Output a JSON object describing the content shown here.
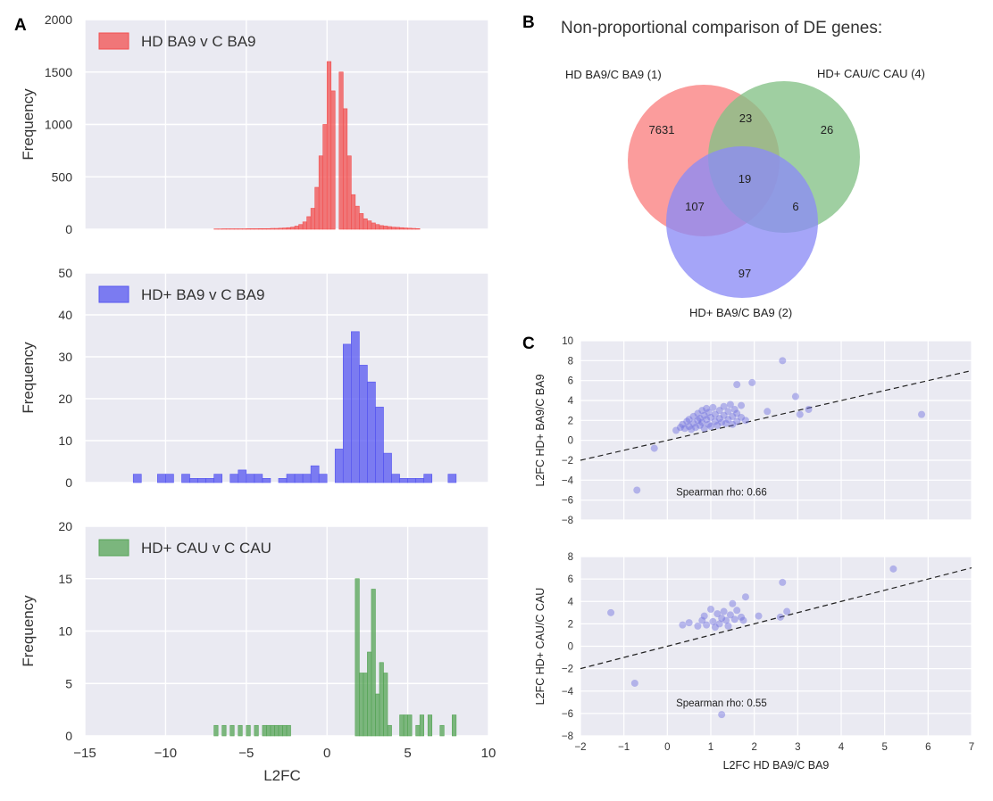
{
  "panel_labels": {
    "a": "A",
    "b": "B",
    "c": "C"
  },
  "venn": {
    "title": "Non-proportional comparison of DE genes:",
    "circles": [
      {
        "name": "HD BA9/C BA9 (1)",
        "color": "#fa8080"
      },
      {
        "name": "HD+ CAU/C CAU (4)",
        "color": "#84c287"
      },
      {
        "name": "HD+ BA9/C BA9 (2)",
        "color": "#8c8cf6"
      }
    ],
    "regions": {
      "only_1": "7631",
      "only_4": "26",
      "only_2": "97",
      "r1_4": "23",
      "r1_2": "107",
      "r4_2": "6",
      "all": "19"
    }
  },
  "chart_data": [
    {
      "type": "histogram",
      "legend": "HD BA9 v C BA9",
      "color": "#f24f4f",
      "xlabel": "",
      "ylabel": "Frequency",
      "xlim": [
        -15,
        10
      ],
      "ylim": [
        0,
        2000
      ],
      "yticks": [
        0,
        500,
        1000,
        1500,
        2000
      ],
      "xticks": [
        -15,
        -10,
        -5,
        0,
        5,
        10
      ],
      "bin_width": 0.25,
      "bins": [
        [
          -7.0,
          3
        ],
        [
          -6.75,
          3
        ],
        [
          -6.5,
          4
        ],
        [
          -6.25,
          4
        ],
        [
          -6.0,
          4
        ],
        [
          -5.75,
          4
        ],
        [
          -5.5,
          4
        ],
        [
          -5.25,
          4
        ],
        [
          -5.0,
          5
        ],
        [
          -4.75,
          5
        ],
        [
          -4.5,
          5
        ],
        [
          -4.25,
          6
        ],
        [
          -4.0,
          6
        ],
        [
          -3.75,
          6
        ],
        [
          -3.5,
          8
        ],
        [
          -3.25,
          8
        ],
        [
          -3.0,
          10
        ],
        [
          -2.75,
          12
        ],
        [
          -2.5,
          15
        ],
        [
          -2.25,
          20
        ],
        [
          -2.0,
          30
        ],
        [
          -1.75,
          45
        ],
        [
          -1.5,
          70
        ],
        [
          -1.25,
          120
        ],
        [
          -1.0,
          200
        ],
        [
          -0.75,
          400
        ],
        [
          -0.5,
          700
        ],
        [
          -0.25,
          1000
        ],
        [
          0.0,
          1600
        ],
        [
          0.25,
          1320
        ],
        [
          0.75,
          1500
        ],
        [
          1.0,
          1150
        ],
        [
          1.25,
          700
        ],
        [
          1.5,
          330
        ],
        [
          1.75,
          220
        ],
        [
          2.0,
          150
        ],
        [
          2.25,
          100
        ],
        [
          2.5,
          80
        ],
        [
          2.75,
          60
        ],
        [
          3.0,
          45
        ],
        [
          3.25,
          35
        ],
        [
          3.5,
          30
        ],
        [
          3.75,
          25
        ],
        [
          4.0,
          20
        ],
        [
          4.25,
          18
        ],
        [
          4.5,
          15
        ],
        [
          4.75,
          12
        ],
        [
          5.0,
          10
        ],
        [
          5.25,
          8
        ],
        [
          5.5,
          6
        ]
      ]
    },
    {
      "type": "histogram",
      "legend": "HD+ BA9 v C BA9",
      "color": "#5555f0",
      "xlabel": "",
      "ylabel": "Frequency",
      "xlim": [
        -15,
        10
      ],
      "ylim": [
        0,
        50
      ],
      "yticks": [
        0,
        10,
        20,
        30,
        40,
        50
      ],
      "xticks": [
        -15,
        -10,
        -5,
        0,
        5,
        10
      ],
      "bin_width": 0.5,
      "bins": [
        [
          -12.0,
          2
        ],
        [
          -10.5,
          2
        ],
        [
          -10.0,
          2
        ],
        [
          -9.0,
          2
        ],
        [
          -8.5,
          1
        ],
        [
          -8.0,
          1
        ],
        [
          -7.5,
          1
        ],
        [
          -7.0,
          2
        ],
        [
          -6.0,
          2
        ],
        [
          -5.5,
          3
        ],
        [
          -5.0,
          2
        ],
        [
          -4.5,
          2
        ],
        [
          -4.0,
          1
        ],
        [
          -3.0,
          1
        ],
        [
          -2.5,
          2
        ],
        [
          -2.0,
          2
        ],
        [
          -1.5,
          2
        ],
        [
          -1.0,
          4
        ],
        [
          -0.5,
          2
        ],
        [
          0.5,
          8
        ],
        [
          1.0,
          33
        ],
        [
          1.5,
          36
        ],
        [
          2.0,
          28
        ],
        [
          2.5,
          24
        ],
        [
          3.0,
          18
        ],
        [
          3.5,
          7
        ],
        [
          4.0,
          2
        ],
        [
          4.5,
          1
        ],
        [
          5.0,
          1
        ],
        [
          5.5,
          1
        ],
        [
          6.0,
          2
        ],
        [
          7.5,
          2
        ]
      ]
    },
    {
      "type": "histogram",
      "legend": "HD+ CAU v C CAU",
      "color": "#55a455",
      "xlabel": "L2FC",
      "ylabel": "Frequency",
      "xlim": [
        -15,
        10
      ],
      "ylim": [
        0,
        20
      ],
      "yticks": [
        0,
        5,
        10,
        15,
        20
      ],
      "xticks": [
        -15,
        -10,
        -5,
        0,
        5,
        10
      ],
      "bin_width": 0.25,
      "bins": [
        [
          -7.0,
          1
        ],
        [
          -6.5,
          1
        ],
        [
          -6.0,
          1
        ],
        [
          -5.5,
          1
        ],
        [
          -5.0,
          1
        ],
        [
          -4.5,
          1
        ],
        [
          -4.0,
          1
        ],
        [
          -3.75,
          1
        ],
        [
          -3.5,
          1
        ],
        [
          -3.25,
          1
        ],
        [
          -3.0,
          1
        ],
        [
          -2.75,
          1
        ],
        [
          -2.5,
          1
        ],
        [
          1.75,
          15
        ],
        [
          2.0,
          6
        ],
        [
          2.25,
          6
        ],
        [
          2.5,
          8
        ],
        [
          2.75,
          14
        ],
        [
          3.0,
          4
        ],
        [
          3.25,
          7
        ],
        [
          3.5,
          6
        ],
        [
          3.75,
          1
        ],
        [
          4.5,
          2
        ],
        [
          4.75,
          2
        ],
        [
          5.0,
          2
        ],
        [
          5.5,
          1
        ],
        [
          5.75,
          2
        ],
        [
          6.25,
          2
        ],
        [
          7.0,
          1
        ],
        [
          7.75,
          2
        ]
      ]
    },
    {
      "type": "scatter",
      "xlabel": "",
      "ylabel": "L2FC HD+ BA9/C BA9",
      "xlim": [
        -2,
        7
      ],
      "ylim": [
        -8,
        10
      ],
      "yticks": [
        -8,
        -6,
        -4,
        -2,
        0,
        2,
        4,
        6,
        8,
        10
      ],
      "annotation": "Spearman rho: 0.66",
      "fit_line": [
        [
          -2,
          -2
        ],
        [
          7,
          7
        ]
      ],
      "point_color": "#6f6fde",
      "points": [
        [
          -0.7,
          -5.0
        ],
        [
          -0.3,
          -0.8
        ],
        [
          0.2,
          1.0
        ],
        [
          0.3,
          1.3
        ],
        [
          0.35,
          1.6
        ],
        [
          0.4,
          1.2
        ],
        [
          0.45,
          1.9
        ],
        [
          0.5,
          1.4
        ],
        [
          0.5,
          2.1
        ],
        [
          0.55,
          1.1
        ],
        [
          0.6,
          1.7
        ],
        [
          0.6,
          2.4
        ],
        [
          0.65,
          1.3
        ],
        [
          0.7,
          2.0
        ],
        [
          0.7,
          2.7
        ],
        [
          0.75,
          1.5
        ],
        [
          0.75,
          2.2
        ],
        [
          0.8,
          1.8
        ],
        [
          0.8,
          3.0
        ],
        [
          0.85,
          1.2
        ],
        [
          0.85,
          2.5
        ],
        [
          0.9,
          2.1
        ],
        [
          0.9,
          3.2
        ],
        [
          0.95,
          1.6
        ],
        [
          0.95,
          2.8
        ],
        [
          1.0,
          1.4
        ],
        [
          1.0,
          2.3
        ],
        [
          1.05,
          3.3
        ],
        [
          1.1,
          1.9
        ],
        [
          1.1,
          2.6
        ],
        [
          1.15,
          1.5
        ],
        [
          1.2,
          2.2
        ],
        [
          1.2,
          3.0
        ],
        [
          1.25,
          1.8
        ],
        [
          1.3,
          2.5
        ],
        [
          1.3,
          3.4
        ],
        [
          1.35,
          1.7
        ],
        [
          1.4,
          2.1
        ],
        [
          1.4,
          2.9
        ],
        [
          1.45,
          3.6
        ],
        [
          1.5,
          1.6
        ],
        [
          1.5,
          2.4
        ],
        [
          1.55,
          3.1
        ],
        [
          1.6,
          1.9
        ],
        [
          1.6,
          2.7
        ],
        [
          1.7,
          2.3
        ],
        [
          1.7,
          3.5
        ],
        [
          1.8,
          2.0
        ],
        [
          1.6,
          5.6
        ],
        [
          1.95,
          5.8
        ],
        [
          2.3,
          2.9
        ],
        [
          2.65,
          8.0
        ],
        [
          2.95,
          4.4
        ],
        [
          3.05,
          2.6
        ],
        [
          3.25,
          3.1
        ],
        [
          5.85,
          2.6
        ]
      ]
    },
    {
      "type": "scatter",
      "xlabel": "L2FC HD BA9/C BA9",
      "ylabel": "L2FC HD+ CAU/C CAU",
      "xlim": [
        -2,
        7
      ],
      "ylim": [
        -8,
        8
      ],
      "xticks": [
        -2,
        -1,
        0,
        1,
        2,
        3,
        4,
        5,
        6,
        7
      ],
      "yticks": [
        -8,
        -6,
        -4,
        -2,
        0,
        2,
        4,
        6,
        8
      ],
      "annotation": "Spearman rho: 0.55",
      "fit_line": [
        [
          -2,
          -2
        ],
        [
          7,
          7
        ]
      ],
      "point_color": "#6f6fde",
      "points": [
        [
          -1.3,
          3.0
        ],
        [
          -0.75,
          -3.3
        ],
        [
          0.35,
          1.9
        ],
        [
          0.5,
          2.1
        ],
        [
          0.7,
          1.8
        ],
        [
          0.8,
          2.3
        ],
        [
          0.85,
          2.7
        ],
        [
          0.9,
          1.9
        ],
        [
          1.0,
          3.3
        ],
        [
          1.05,
          2.2
        ],
        [
          1.1,
          1.7
        ],
        [
          1.15,
          2.9
        ],
        [
          1.2,
          2.0
        ],
        [
          1.25,
          2.5
        ],
        [
          1.3,
          3.1
        ],
        [
          1.35,
          2.3
        ],
        [
          1.4,
          1.8
        ],
        [
          1.45,
          2.8
        ],
        [
          1.5,
          3.8
        ],
        [
          1.55,
          2.4
        ],
        [
          1.6,
          3.2
        ],
        [
          1.7,
          2.6
        ],
        [
          1.75,
          2.3
        ],
        [
          1.8,
          4.4
        ],
        [
          1.25,
          -6.1
        ],
        [
          2.1,
          2.7
        ],
        [
          2.6,
          2.6
        ],
        [
          2.65,
          5.7
        ],
        [
          2.75,
          3.1
        ],
        [
          5.2,
          6.9
        ]
      ]
    }
  ]
}
